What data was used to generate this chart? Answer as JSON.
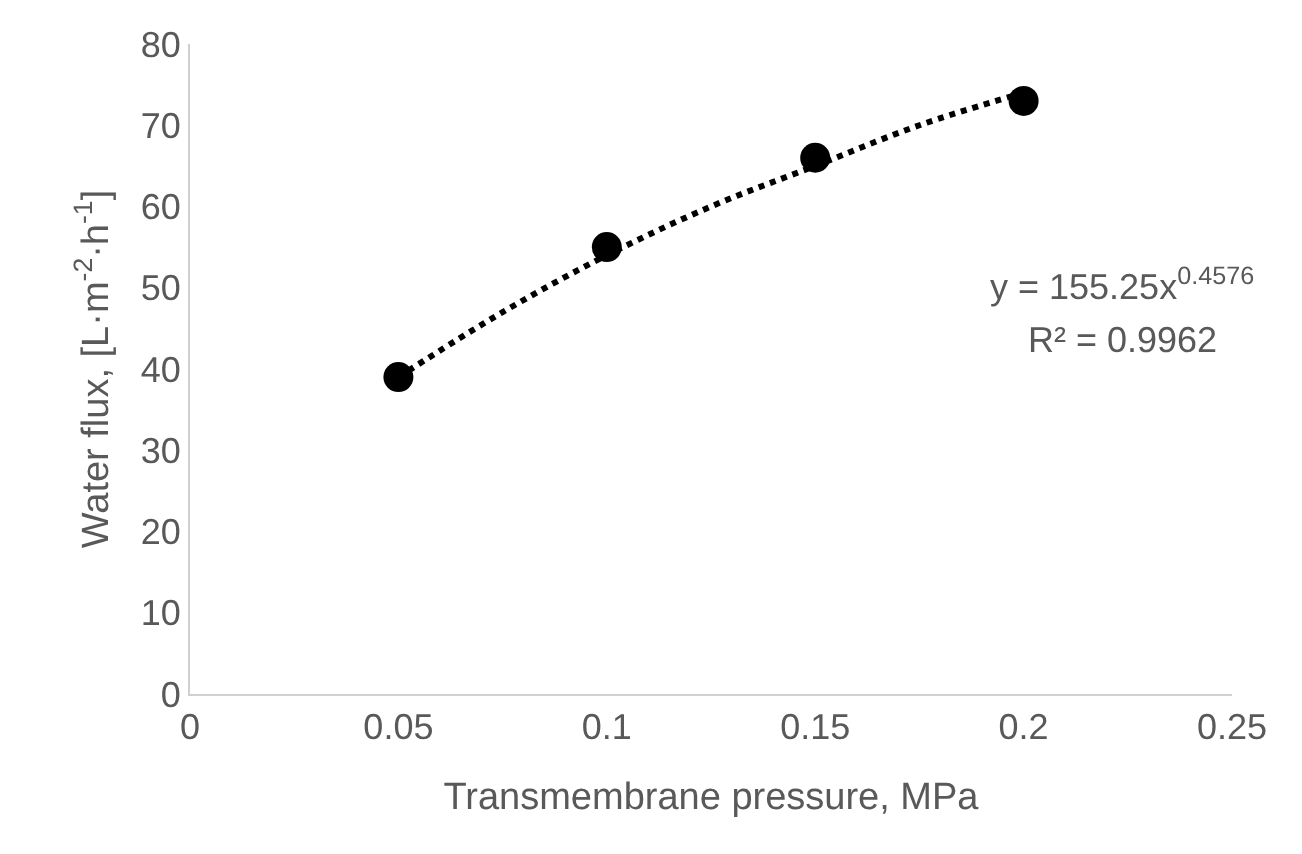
{
  "chart_data": {
    "type": "scatter",
    "xlabel": "Transmembrane pressure, MPa",
    "ylabel": "Water flux, [L·m$^{-2}$·h$^{-1}$]",
    "x": [
      0.05,
      0.1,
      0.15,
      0.2
    ],
    "series": [
      {
        "color": "#000000",
        "values": [
          39,
          55,
          66,
          73
        ],
        "marker": "circle"
      },
      {
        "type": "line",
        "color": "#000000",
        "line_style": "dotted",
        "marker": "none",
        "x": [
          0.05,
          0.075,
          0.1,
          0.125,
          0.15,
          0.175,
          0.2
        ],
        "values": [
          39,
          47,
          54,
          60,
          65,
          70,
          74
        ]
      }
    ],
    "annotations": [
      "y = 155.25x$^{0.4576}$",
      "R² = 0.9962"
    ],
    "xlim": [
      0,
      0.25
    ],
    "xticks": [
      0,
      0.05,
      0.1,
      0.15,
      0.2,
      0.25
    ],
    "ylim": [
      0,
      80
    ],
    "yticks": [
      0,
      10,
      20,
      30,
      40,
      50,
      60,
      70,
      80
    ]
  }
}
